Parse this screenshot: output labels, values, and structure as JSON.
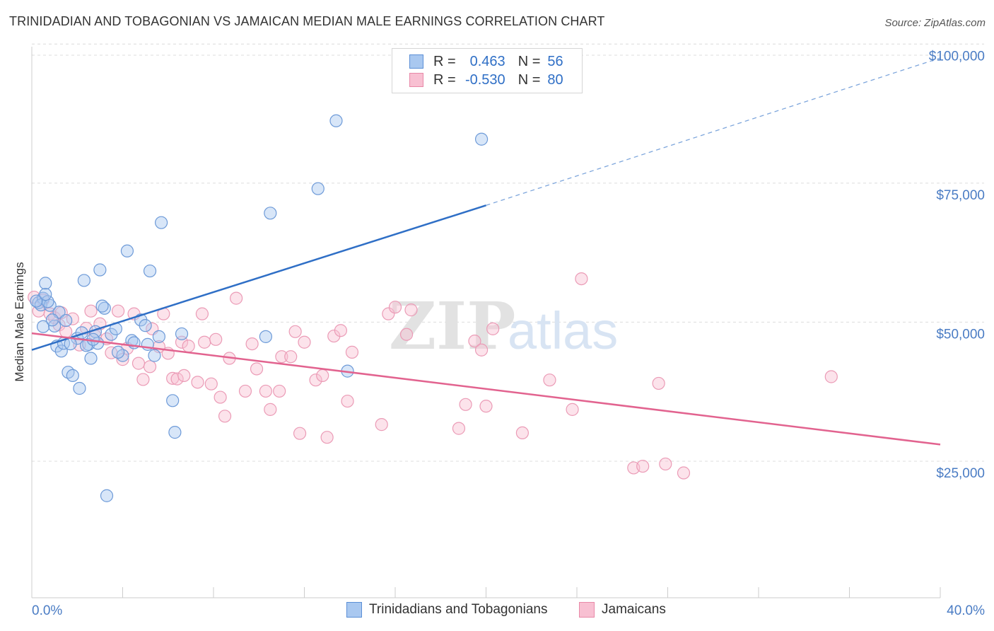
{
  "title": "TRINIDADIAN AND TOBAGONIAN VS JAMAICAN MEDIAN MALE EARNINGS CORRELATION CHART",
  "source": "Source: ZipAtlas.com",
  "watermark": {
    "zip": "ZIP",
    "atlas": "atlas"
  },
  "legend": {
    "r_label": "R =",
    "n_label": "N =",
    "rows": [
      {
        "r": "0.463",
        "n": "56",
        "color": "#a9c8f0",
        "stroke": "#5b8fd6"
      },
      {
        "r": "-0.530",
        "n": "80",
        "color": "#f8c0d2",
        "stroke": "#e889a8"
      }
    ]
  },
  "bottom_legend": [
    "Trinidadians and Tobagonians",
    "Jamaicans"
  ],
  "chart_data": {
    "type": "scatter",
    "title": "TRINIDADIAN AND TOBAGONIAN VS JAMAICAN MEDIAN MALE EARNINGS CORRELATION CHART",
    "xlabel": "",
    "ylabel": "Median Male Earnings",
    "xlim": [
      0,
      40
    ],
    "ylim": [
      0,
      100000
    ],
    "x_tick_labels": [
      "0.0%",
      "40.0%"
    ],
    "y_ticks": [
      25000,
      50000,
      75000,
      100000
    ],
    "y_tick_labels": [
      "$25,000",
      "$50,000",
      "$75,000",
      "$100,000"
    ],
    "colors": {
      "blue": "#2f6fc6",
      "pink": "#e2638f",
      "axis_text": "#4a7cc4"
    },
    "series": [
      {
        "name": "Trinidadians and Tobagonians",
        "R": 0.463,
        "N": 56,
        "trend": {
          "x0": 0,
          "y0": 45000,
          "x1": 20,
          "y1": 71000,
          "dashed_to": 40,
          "dashed_y": 97500
        },
        "points": [
          [
            0.3,
            53500
          ],
          [
            0.5,
            54300
          ],
          [
            0.4,
            53100
          ],
          [
            0.6,
            57000
          ],
          [
            0.5,
            49200
          ],
          [
            0.8,
            53000
          ],
          [
            0.7,
            53700
          ],
          [
            1.0,
            49300
          ],
          [
            1.2,
            51800
          ],
          [
            1.1,
            45700
          ],
          [
            1.3,
            44800
          ],
          [
            1.4,
            46200
          ],
          [
            1.5,
            50300
          ],
          [
            1.6,
            41000
          ],
          [
            1.8,
            40400
          ],
          [
            2.0,
            47100
          ],
          [
            2.1,
            38100
          ],
          [
            2.2,
            48100
          ],
          [
            2.3,
            57500
          ],
          [
            2.5,
            46000
          ],
          [
            2.4,
            45800
          ],
          [
            2.6,
            43500
          ],
          [
            2.8,
            48300
          ],
          [
            2.9,
            46200
          ],
          [
            3.0,
            59400
          ],
          [
            3.2,
            52500
          ],
          [
            3.3,
            18800
          ],
          [
            3.5,
            47800
          ],
          [
            3.7,
            48800
          ],
          [
            4.0,
            44000
          ],
          [
            4.2,
            62800
          ],
          [
            4.4,
            46700
          ],
          [
            4.5,
            46300
          ],
          [
            4.8,
            50400
          ],
          [
            5.0,
            49400
          ],
          [
            5.2,
            59200
          ],
          [
            5.4,
            44000
          ],
          [
            5.6,
            47400
          ],
          [
            5.7,
            67900
          ],
          [
            6.2,
            35900
          ],
          [
            6.3,
            30200
          ],
          [
            6.6,
            47900
          ],
          [
            10.3,
            47400
          ],
          [
            10.5,
            69600
          ],
          [
            12.6,
            74000
          ],
          [
            13.4,
            86200
          ],
          [
            13.9,
            41200
          ],
          [
            19.8,
            82900
          ],
          [
            3.1,
            52900
          ],
          [
            0.2,
            53800
          ],
          [
            1.7,
            46100
          ],
          [
            0.9,
            50400
          ],
          [
            3.8,
            44600
          ],
          [
            5.1,
            46000
          ],
          [
            2.7,
            46900
          ],
          [
            0.6,
            55000
          ]
        ]
      },
      {
        "name": "Jamaicans",
        "R": -0.53,
        "N": 80,
        "trend": {
          "x0": 0,
          "y0": 48000,
          "x1": 40,
          "y1": 28000
        },
        "points": [
          [
            0.1,
            54500
          ],
          [
            0.3,
            52000
          ],
          [
            0.5,
            54000
          ],
          [
            0.8,
            51500
          ],
          [
            1.0,
            50800
          ],
          [
            1.2,
            49500
          ],
          [
            1.5,
            48300
          ],
          [
            1.8,
            50600
          ],
          [
            2.1,
            45900
          ],
          [
            2.4,
            48900
          ],
          [
            2.6,
            52000
          ],
          [
            2.8,
            47500
          ],
          [
            3.0,
            49700
          ],
          [
            3.3,
            47000
          ],
          [
            3.5,
            44500
          ],
          [
            3.8,
            52000
          ],
          [
            4.0,
            43300
          ],
          [
            4.2,
            45300
          ],
          [
            4.5,
            51500
          ],
          [
            4.7,
            42600
          ],
          [
            4.9,
            39700
          ],
          [
            5.2,
            42000
          ],
          [
            5.3,
            48800
          ],
          [
            5.6,
            45600
          ],
          [
            5.8,
            51500
          ],
          [
            6.0,
            44400
          ],
          [
            6.2,
            39900
          ],
          [
            6.4,
            39800
          ],
          [
            6.6,
            46400
          ],
          [
            6.7,
            40400
          ],
          [
            6.9,
            45700
          ],
          [
            7.3,
            39200
          ],
          [
            7.5,
            51500
          ],
          [
            7.6,
            46400
          ],
          [
            7.9,
            38900
          ],
          [
            8.1,
            46900
          ],
          [
            8.3,
            36500
          ],
          [
            8.5,
            33100
          ],
          [
            8.7,
            43500
          ],
          [
            9.0,
            54300
          ],
          [
            9.4,
            37600
          ],
          [
            9.7,
            46100
          ],
          [
            9.9,
            41600
          ],
          [
            10.3,
            37600
          ],
          [
            10.5,
            34300
          ],
          [
            10.9,
            37600
          ],
          [
            11.0,
            43800
          ],
          [
            11.4,
            43800
          ],
          [
            11.6,
            48300
          ],
          [
            11.8,
            30000
          ],
          [
            12.0,
            46400
          ],
          [
            12.5,
            39600
          ],
          [
            12.8,
            40400
          ],
          [
            13.0,
            29300
          ],
          [
            13.3,
            47500
          ],
          [
            13.6,
            48500
          ],
          [
            13.9,
            35800
          ],
          [
            14.1,
            44600
          ],
          [
            15.4,
            31600
          ],
          [
            15.7,
            51500
          ],
          [
            16.0,
            52700
          ],
          [
            16.5,
            47800
          ],
          [
            16.7,
            52200
          ],
          [
            18.8,
            30900
          ],
          [
            19.1,
            35200
          ],
          [
            19.5,
            46600
          ],
          [
            19.8,
            45000
          ],
          [
            20.0,
            34900
          ],
          [
            20.3,
            48800
          ],
          [
            21.6,
            30100
          ],
          [
            22.8,
            39600
          ],
          [
            23.8,
            34300
          ],
          [
            24.2,
            57800
          ],
          [
            26.5,
            23800
          ],
          [
            26.9,
            24100
          ],
          [
            27.6,
            39000
          ],
          [
            27.9,
            24500
          ],
          [
            28.7,
            22900
          ],
          [
            35.2,
            40200
          ],
          [
            1.3,
            51700
          ]
        ]
      }
    ]
  }
}
